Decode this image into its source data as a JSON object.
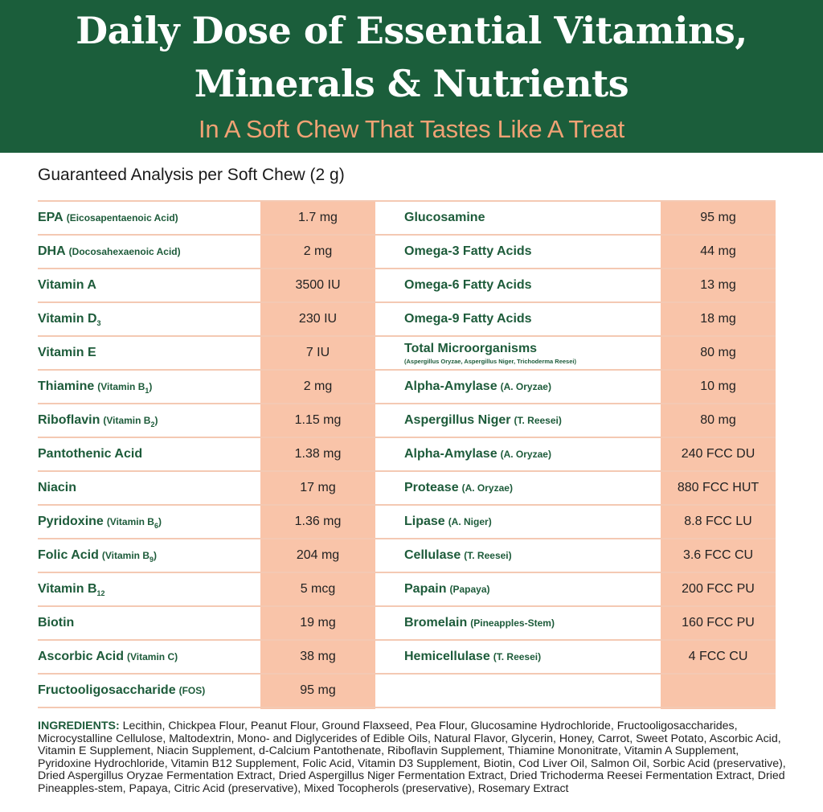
{
  "header": {
    "title_line1": "Daily Dose of Essential Vitamins,",
    "title_line2": "Minerals & Nutrients",
    "subtitle": "In A Soft Chew That Tastes Like A Treat"
  },
  "colors": {
    "header_bg": "#1b5e3b",
    "subtitle": "#f0a274",
    "label_text": "#1d5b3a",
    "value_bg": "#f9c4a9",
    "row_line": "#f4c9b3"
  },
  "analysis": {
    "title": "Guaranteed Analysis per Soft Chew (2 g)",
    "left": [
      {
        "name": "EPA",
        "detail": "(Eicosapentaenoic Acid)",
        "value": "1.7 mg"
      },
      {
        "name": "DHA",
        "detail": "(Docosahexaenoic Acid)",
        "value": "2 mg"
      },
      {
        "name": "Vitamin A",
        "detail": "",
        "value": "3500 IU"
      },
      {
        "name": "Vitamin D",
        "sub": "3",
        "detail": "",
        "value": "230 IU"
      },
      {
        "name": "Vitamin E",
        "detail": "",
        "value": "7 IU"
      },
      {
        "name": "Thiamine",
        "detail": "(Vitamin B",
        "detail_sub": "1",
        "detail_end": ")",
        "value": "2 mg"
      },
      {
        "name": "Riboflavin",
        "detail": "(Vitamin B",
        "detail_sub": "2",
        "detail_end": ")",
        "value": "1.15 mg"
      },
      {
        "name": "Pantothenic Acid",
        "detail": "",
        "value": "1.38 mg"
      },
      {
        "name": "Niacin",
        "detail": "",
        "value": "17 mg"
      },
      {
        "name": "Pyridoxine",
        "detail": "(Vitamin B",
        "detail_sub": "6",
        "detail_end": ")",
        "value": "1.36 mg"
      },
      {
        "name": "Folic Acid",
        "detail": "(Vitamin B",
        "detail_sub": "9",
        "detail_end": ")",
        "value": "204 mg"
      },
      {
        "name": "Vitamin B",
        "sub": "12",
        "detail": "",
        "value": "5 mcg"
      },
      {
        "name": "Biotin",
        "detail": "",
        "value": "19 mg"
      },
      {
        "name": "Ascorbic Acid",
        "detail": "(Vitamin C)",
        "value": "38 mg"
      },
      {
        "name": "Fructooligosaccharide",
        "detail": "(FOS)",
        "value": "95 mg"
      }
    ],
    "right": [
      {
        "name": "Glucosamine",
        "detail": "",
        "value": "95 mg"
      },
      {
        "name": "Omega-3 Fatty Acids",
        "detail": "",
        "value": "44 mg"
      },
      {
        "name": "Omega-6 Fatty Acids",
        "detail": "",
        "value": "13 mg"
      },
      {
        "name": "Omega-9 Fatty Acids",
        "detail": "",
        "value": "18 mg"
      },
      {
        "name": "Total Microorganisms",
        "note": "(Aspergillus Oryzae, Aspergillus Niger, Trichoderma Reesei)",
        "detail": "",
        "value": "80 mg"
      },
      {
        "name": "Alpha-Amylase",
        "detail": "(A. Oryzae)",
        "value": "10 mg"
      },
      {
        "name": "Aspergillus Niger",
        "detail": "(T. Reesei)",
        "value": "80 mg"
      },
      {
        "name": "Alpha-Amylase",
        "detail": "(A. Oryzae)",
        "value": "240 FCC DU"
      },
      {
        "name": "Protease",
        "detail": "(A. Oryzae)",
        "value": "880 FCC HUT"
      },
      {
        "name": "Lipase",
        "detail": "(A. Niger)",
        "value": "8.8 FCC LU"
      },
      {
        "name": "Cellulase",
        "detail": "(T. Reesei)",
        "value": "3.6 FCC CU"
      },
      {
        "name": "Papain",
        "detail": "(Papaya)",
        "value": "200 FCC PU"
      },
      {
        "name": "Bromelain",
        "detail": "(Pineapples-Stem)",
        "value": "160 FCC PU"
      },
      {
        "name": "Hemicellulase",
        "detail": "(T. Reesei)",
        "value": "4 FCC CU"
      },
      {
        "name": "",
        "detail": "",
        "value": ""
      }
    ]
  },
  "ingredients": {
    "label": "INGREDIENTS:",
    "text": " Lecithin, Chickpea Flour, Peanut Flour, Ground Flaxseed, Pea Flour, Glucosamine Hydrochloride, Fructooligosaccharides, Microcystalline Cellulose, Maltodextrin, Mono- and Diglycerides of Edible Oils, Natural Flavor, Glycerin, Honey, Carrot, Sweet Potato, Ascorbic Acid, Vitamin E Supplement, Niacin Supplement, d-Calcium Pantothenate, Riboflavin Supplement, Thiamine Mononitrate, Vitamin A Supplement, Pyridoxine Hydrochloride, Vitamin B12 Supplement, Folic Acid, Vitamin D3 Supplement, Biotin, Cod Liver Oil, Salmon Oil, Sorbic Acid (preservative), Dried Aspergillus Oryzae Fermentation Extract, Dried Aspergillus Niger Fermentation Extract, Dried Trichoderma Reesei Fermentation Extract, Dried Pineapples-stem, Papaya, Citric Acid (preservative), Mixed Tocopherols (preservative), Rosemary Extract"
  }
}
